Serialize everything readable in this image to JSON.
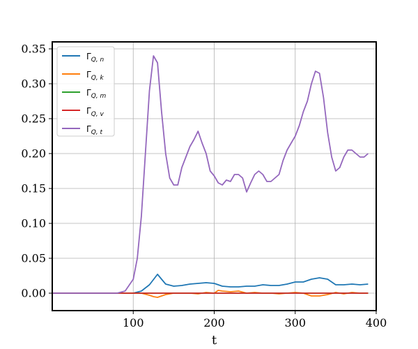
{
  "chart_data": {
    "type": "line",
    "title": "",
    "xlabel": "t",
    "ylabel": "",
    "xlim": [
      0,
      400
    ],
    "ylim": [
      -0.025,
      0.36
    ],
    "xticks": [
      100,
      200,
      300,
      400
    ],
    "xtick_labels": [
      "100",
      "200",
      "300",
      "400"
    ],
    "yticks": [
      0.0,
      0.05,
      0.1,
      0.15,
      0.2,
      0.25,
      0.3,
      0.35
    ],
    "ytick_labels": [
      "0.00",
      "0.05",
      "0.10",
      "0.15",
      "0.20",
      "0.25",
      "0.30",
      "0.35"
    ],
    "grid": true,
    "legend_position": "top-left",
    "series": [
      {
        "name": "Γ",
        "subscript": "Q, n",
        "color": "#1f77b4",
        "x": [
          0,
          100,
          110,
          120,
          130,
          135,
          140,
          150,
          160,
          170,
          180,
          190,
          200,
          210,
          220,
          230,
          240,
          250,
          260,
          270,
          280,
          290,
          300,
          310,
          320,
          330,
          340,
          350,
          360,
          370,
          380,
          390
        ],
        "y": [
          0,
          0.0,
          0.003,
          0.012,
          0.027,
          0.02,
          0.013,
          0.01,
          0.011,
          0.013,
          0.014,
          0.015,
          0.014,
          0.01,
          0.009,
          0.009,
          0.01,
          0.01,
          0.012,
          0.011,
          0.011,
          0.013,
          0.016,
          0.016,
          0.02,
          0.022,
          0.02,
          0.012,
          0.012,
          0.013,
          0.012,
          0.013
        ]
      },
      {
        "name": "Γ",
        "subscript": "Q, k",
        "color": "#ff7f0e",
        "x": [
          0,
          100,
          110,
          120,
          125,
          130,
          140,
          150,
          160,
          170,
          180,
          190,
          200,
          205,
          210,
          220,
          230,
          240,
          250,
          260,
          270,
          280,
          290,
          300,
          310,
          320,
          330,
          340,
          350,
          360,
          370,
          380,
          390
        ],
        "y": [
          0,
          0.0,
          0.0,
          -0.003,
          -0.005,
          -0.006,
          -0.002,
          0.0,
          0.0,
          0.0,
          -0.001,
          0.001,
          0.0,
          0.004,
          0.003,
          0.002,
          0.003,
          0.0,
          0.001,
          0.0,
          0.0,
          -0.001,
          0.0,
          0.001,
          0.0,
          -0.004,
          -0.004,
          -0.002,
          0.001,
          -0.001,
          0.001,
          0.0,
          0.0
        ]
      },
      {
        "name": "Γ",
        "subscript": "Q, m",
        "color": "#2ca02c",
        "x": [
          0,
          390
        ],
        "y": [
          0,
          0
        ]
      },
      {
        "name": "Γ",
        "subscript": "Q, v",
        "color": "#d62728",
        "x": [
          0,
          390
        ],
        "y": [
          0,
          0
        ]
      },
      {
        "name": "Γ",
        "subscript": "Q, t",
        "color": "#9467bd",
        "x": [
          0,
          70,
          80,
          90,
          100,
          105,
          110,
          115,
          120,
          125,
          130,
          135,
          140,
          145,
          150,
          155,
          160,
          165,
          170,
          175,
          180,
          185,
          190,
          195,
          200,
          205,
          210,
          215,
          220,
          225,
          230,
          235,
          240,
          245,
          250,
          255,
          260,
          265,
          270,
          275,
          280,
          285,
          290,
          295,
          300,
          305,
          310,
          315,
          320,
          325,
          330,
          335,
          340,
          345,
          350,
          355,
          360,
          365,
          370,
          375,
          380,
          385,
          390
        ],
        "y": [
          0,
          0.0,
          0.0,
          0.003,
          0.02,
          0.05,
          0.11,
          0.2,
          0.29,
          0.34,
          0.33,
          0.26,
          0.2,
          0.165,
          0.155,
          0.155,
          0.18,
          0.195,
          0.21,
          0.22,
          0.232,
          0.215,
          0.2,
          0.175,
          0.168,
          0.158,
          0.155,
          0.162,
          0.16,
          0.17,
          0.17,
          0.165,
          0.145,
          0.158,
          0.17,
          0.175,
          0.17,
          0.16,
          0.16,
          0.165,
          0.17,
          0.19,
          0.205,
          0.215,
          0.225,
          0.24,
          0.26,
          0.275,
          0.3,
          0.318,
          0.315,
          0.28,
          0.23,
          0.195,
          0.175,
          0.18,
          0.195,
          0.205,
          0.205,
          0.2,
          0.195,
          0.195,
          0.2
        ]
      }
    ]
  }
}
